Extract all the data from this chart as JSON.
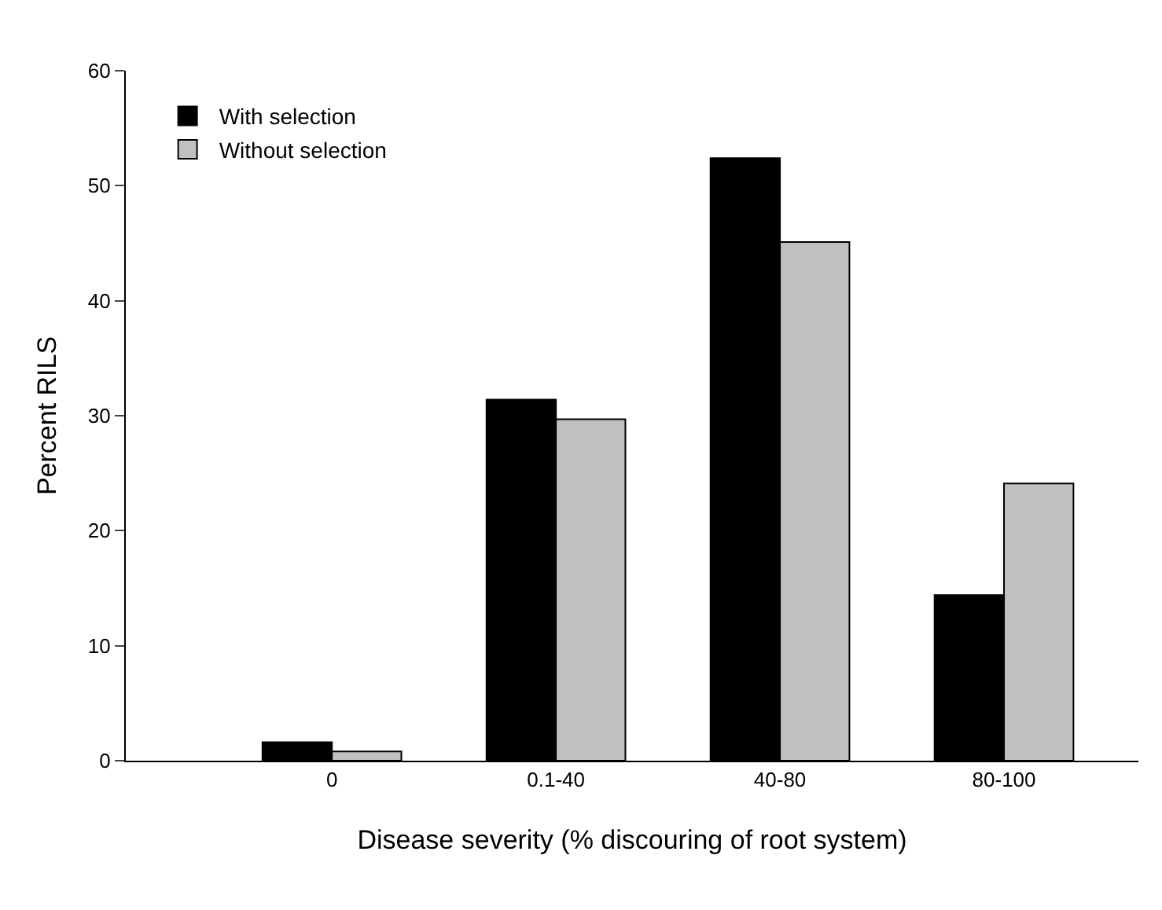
{
  "chart_data": {
    "type": "bar",
    "xlabel": "Disease severity (% discouring of root system)",
    "ylabel": "Percent RILS",
    "categories": [
      "0",
      "0.1-40",
      "40-80",
      "80-100"
    ],
    "series": [
      {
        "name": "With selection",
        "color": "#000000",
        "values": [
          1.6,
          31.4,
          52.4,
          14.4
        ]
      },
      {
        "name": "Without selection",
        "color": "#c0c0c0",
        "values": [
          0.8,
          29.7,
          45.1,
          24.1
        ]
      }
    ],
    "ylim": [
      0,
      60
    ],
    "yticks": [
      0,
      10,
      20,
      30,
      40,
      50,
      60
    ],
    "grid": false,
    "legend": "top left"
  }
}
